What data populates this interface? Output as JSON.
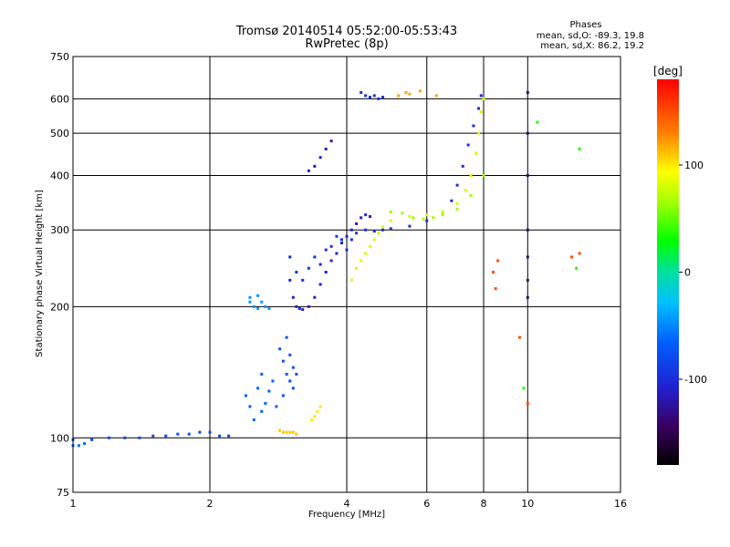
{
  "chart_data": {
    "type": "scatter",
    "title": "Tromsø 20140514 05:52:00-05:53:43",
    "subtitle": "RwPretec (8p)",
    "info": {
      "heading": "Phases",
      "line1": "mean, sd,O: -89.3, 19.8",
      "line2": "mean, sd,X:  86.2, 19.2"
    },
    "xlabel": "Frequency [MHz]",
    "ylabel": "Stationary phase Virtual Height [km]",
    "x_scale": "log",
    "y_scale": "log",
    "xlim": [
      1,
      16
    ],
    "ylim": [
      75,
      750
    ],
    "x_ticks": [
      1,
      2,
      4,
      6,
      8,
      10,
      16
    ],
    "x_tick_labels": [
      "1",
      "2",
      "4",
      "6",
      "8",
      "10",
      "16"
    ],
    "y_ticks": [
      75,
      100,
      200,
      300,
      400,
      500,
      600,
      750
    ],
    "y_tick_labels": [
      "75",
      "100",
      "200",
      "300",
      "400",
      "500",
      "600",
      "750"
    ],
    "grid": true,
    "colorbar": {
      "label": "[deg]",
      "range": [
        -180,
        180
      ],
      "ticks": [
        100,
        0,
        -100
      ],
      "tick_labels": [
        "100",
        "0",
        "-100"
      ]
    },
    "series": [
      {
        "phase": -80,
        "points": [
          [
            1.0,
            99
          ],
          [
            1.1,
            99
          ],
          [
            1.2,
            100
          ],
          [
            1.3,
            100
          ],
          [
            1.4,
            100
          ],
          [
            1.5,
            101
          ],
          [
            1.6,
            101
          ],
          [
            1.7,
            102
          ],
          [
            1.8,
            102
          ],
          [
            1.9,
            103
          ],
          [
            2.0,
            103
          ],
          [
            2.1,
            101
          ],
          [
            2.2,
            101
          ]
        ]
      },
      {
        "phase": -60,
        "points": [
          [
            1.0,
            96
          ],
          [
            1.03,
            96
          ],
          [
            1.06,
            97
          ]
        ]
      },
      {
        "phase": -45,
        "points": [
          [
            2.45,
            205
          ],
          [
            2.5,
            200
          ],
          [
            2.55,
            198
          ],
          [
            2.6,
            205
          ],
          [
            2.65,
            200
          ],
          [
            2.7,
            198
          ],
          [
            2.45,
            210
          ],
          [
            2.55,
            212
          ]
        ]
      },
      {
        "phase": -65,
        "points": [
          [
            2.4,
            125
          ],
          [
            2.45,
            118
          ],
          [
            2.5,
            110
          ],
          [
            2.55,
            130
          ],
          [
            2.6,
            115
          ],
          [
            2.65,
            120
          ],
          [
            2.7,
            128
          ],
          [
            2.75,
            135
          ],
          [
            2.8,
            118
          ],
          [
            2.6,
            140
          ]
        ]
      },
      {
        "phase": -75,
        "points": [
          [
            2.85,
            160
          ],
          [
            2.9,
            150
          ],
          [
            2.95,
            140
          ],
          [
            3.0,
            155
          ],
          [
            3.05,
            145
          ],
          [
            3.0,
            135
          ],
          [
            2.9,
            125
          ],
          [
            3.1,
            140
          ],
          [
            3.05,
            130
          ],
          [
            2.95,
            170
          ]
        ]
      },
      {
        "phase": 110,
        "points": [
          [
            2.85,
            104
          ],
          [
            2.9,
            103
          ],
          [
            2.95,
            103
          ],
          [
            3.0,
            103
          ],
          [
            3.05,
            103
          ],
          [
            3.1,
            102
          ]
        ]
      },
      {
        "phase": 100,
        "points": [
          [
            3.35,
            110
          ],
          [
            3.4,
            112
          ],
          [
            3.45,
            115
          ],
          [
            3.5,
            118
          ]
        ]
      },
      {
        "phase": -105,
        "points": [
          [
            3.0,
            260
          ],
          [
            3.0,
            230
          ],
          [
            3.05,
            210
          ],
          [
            3.1,
            200
          ],
          [
            3.15,
            198
          ],
          [
            3.2,
            197
          ],
          [
            3.3,
            200
          ],
          [
            3.4,
            210
          ],
          [
            3.5,
            225
          ],
          [
            3.6,
            240
          ],
          [
            3.7,
            255
          ],
          [
            3.8,
            265
          ],
          [
            3.9,
            280
          ],
          [
            4.0,
            290
          ],
          [
            4.1,
            300
          ],
          [
            4.2,
            310
          ],
          [
            4.3,
            320
          ],
          [
            4.4,
            325
          ],
          [
            4.5,
            322
          ]
        ]
      },
      {
        "phase": -95,
        "points": [
          [
            3.1,
            240
          ],
          [
            3.2,
            230
          ],
          [
            3.3,
            245
          ],
          [
            3.4,
            260
          ],
          [
            3.5,
            250
          ],
          [
            3.6,
            270
          ],
          [
            3.7,
            275
          ],
          [
            3.8,
            290
          ],
          [
            3.9,
            285
          ],
          [
            4.0,
            270
          ],
          [
            4.1,
            285
          ],
          [
            4.2,
            295
          ]
        ]
      },
      {
        "phase": -100,
        "points": [
          [
            4.4,
            300
          ],
          [
            4.6,
            298
          ],
          [
            4.8,
            300
          ],
          [
            5.0,
            302
          ],
          [
            5.5,
            306
          ],
          [
            6.0,
            315
          ],
          [
            6.5,
            330
          ],
          [
            6.8,
            350
          ],
          [
            7.0,
            380
          ],
          [
            7.2,
            420
          ],
          [
            7.4,
            470
          ],
          [
            7.6,
            520
          ],
          [
            7.8,
            570
          ],
          [
            7.9,
            610
          ]
        ]
      },
      {
        "phase": -110,
        "points": [
          [
            3.3,
            410
          ],
          [
            3.4,
            420
          ],
          [
            3.5,
            440
          ],
          [
            3.6,
            460
          ],
          [
            3.7,
            480
          ]
        ]
      },
      {
        "phase": -95,
        "points": [
          [
            4.3,
            620
          ],
          [
            4.4,
            610
          ],
          [
            4.5,
            605
          ],
          [
            4.6,
            610
          ],
          [
            4.7,
            600
          ],
          [
            4.8,
            605
          ]
        ]
      },
      {
        "phase": 80,
        "points": [
          [
            4.1,
            230
          ],
          [
            4.2,
            245
          ],
          [
            4.3,
            255
          ],
          [
            4.4,
            265
          ],
          [
            4.5,
            275
          ],
          [
            4.6,
            285
          ],
          [
            4.7,
            295
          ],
          [
            4.8,
            305
          ],
          [
            5.0,
            315
          ],
          [
            5.5,
            322
          ],
          [
            6.0,
            325
          ],
          [
            6.5,
            330
          ],
          [
            7.0,
            345
          ],
          [
            7.3,
            370
          ],
          [
            7.5,
            400
          ],
          [
            7.7,
            450
          ],
          [
            7.8,
            500
          ],
          [
            7.9,
            560
          ],
          [
            8.0,
            600
          ]
        ]
      },
      {
        "phase": 65,
        "points": [
          [
            5.0,
            330
          ],
          [
            5.3,
            328
          ],
          [
            5.6,
            320
          ],
          [
            5.9,
            318
          ],
          [
            6.2,
            320
          ],
          [
            6.5,
            325
          ],
          [
            7.0,
            335
          ],
          [
            7.5,
            360
          ],
          [
            8.0,
            400
          ]
        ]
      },
      {
        "phase": 120,
        "points": [
          [
            5.2,
            610
          ],
          [
            5.4,
            620
          ],
          [
            5.5,
            615
          ],
          [
            5.8,
            625
          ],
          [
            6.3,
            610
          ]
        ]
      },
      {
        "phase": -140,
        "points": [
          [
            10.0,
            620
          ],
          [
            10.0,
            500
          ],
          [
            10.0,
            400
          ],
          [
            10.0,
            300
          ],
          [
            10.0,
            260
          ],
          [
            10.0,
            230
          ],
          [
            10.0,
            210
          ]
        ]
      },
      {
        "phase": 150,
        "points": [
          [
            8.4,
            240
          ],
          [
            8.5,
            220
          ],
          [
            8.6,
            255
          ],
          [
            9.6,
            170
          ],
          [
            10.0,
            120
          ],
          [
            12.5,
            260
          ],
          [
            13.0,
            265
          ]
        ]
      },
      {
        "phase": 35,
        "points": [
          [
            9.8,
            130
          ],
          [
            10.5,
            530
          ],
          [
            13.0,
            460
          ],
          [
            12.8,
            245
          ]
        ]
      }
    ]
  }
}
